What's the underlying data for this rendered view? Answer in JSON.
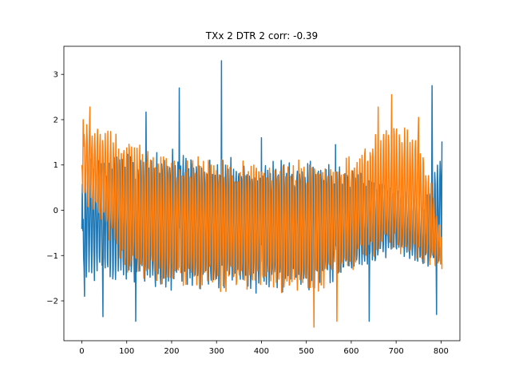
{
  "chart_data": {
    "type": "line",
    "title": "TXx 2 DTR 2 corr: -0.39",
    "xlabel": "",
    "ylabel": "",
    "xlim": [
      -40,
      842
    ],
    "ylim": [
      -2.88,
      3.62
    ],
    "xticks": [
      0,
      100,
      200,
      300,
      400,
      500,
      600,
      700,
      800
    ],
    "yticks": [
      -2,
      -1,
      0,
      1,
      2,
      3
    ],
    "grid": false,
    "legend": "none",
    "n_points": 803,
    "series": [
      {
        "color": "#1f77b4",
        "amplitude_envelope_x": [
          0,
          100,
          200,
          300,
          400,
          500,
          600,
          700,
          760,
          800
        ],
        "amplitude_envelope_upper": [
          1.2,
          1.4,
          1.5,
          1.3,
          1.2,
          1.2,
          1.0,
          0.6,
          0.2,
          1.5
        ],
        "amplitude_envelope_lower": [
          -1.6,
          -1.8,
          -1.9,
          -1.9,
          -1.9,
          -1.9,
          -1.6,
          -1.0,
          -1.3,
          -1.5
        ],
        "peaks": [
          {
            "x": 2,
            "y": -0.45
          },
          {
            "x": 6,
            "y": -1.9
          },
          {
            "x": 47,
            "y": -2.35
          },
          {
            "x": 120,
            "y": -2.45
          },
          {
            "x": 143,
            "y": 2.17
          },
          {
            "x": 217,
            "y": 2.7
          },
          {
            "x": 311,
            "y": 3.3
          },
          {
            "x": 400,
            "y": 1.6
          },
          {
            "x": 565,
            "y": 1.45
          },
          {
            "x": 640,
            "y": -2.45
          },
          {
            "x": 780,
            "y": 2.75
          },
          {
            "x": 790,
            "y": -2.3
          },
          {
            "x": 802,
            "y": 1.52
          }
        ]
      },
      {
        "color": "#ff7f0e",
        "amplitude_envelope_x": [
          0,
          50,
          100,
          200,
          300,
          400,
          500,
          600,
          680,
          750,
          800
        ],
        "amplitude_envelope_upper": [
          2.0,
          1.9,
          1.7,
          1.3,
          1.3,
          1.2,
          1.2,
          1.3,
          2.0,
          2.0,
          -0.4
        ],
        "amplitude_envelope_lower": [
          0.2,
          -0.5,
          -1.6,
          -1.8,
          -1.9,
          -1.9,
          -2.1,
          -1.4,
          -1.0,
          -1.3,
          -1.3
        ],
        "peaks": [
          {
            "x": 0,
            "y": 1.0
          },
          {
            "x": 3,
            "y": 2.0
          },
          {
            "x": 18,
            "y": 2.28
          },
          {
            "x": 517,
            "y": -2.58
          },
          {
            "x": 568,
            "y": -2.45
          },
          {
            "x": 660,
            "y": 2.28
          },
          {
            "x": 690,
            "y": 2.55
          },
          {
            "x": 750,
            "y": 2.05
          },
          {
            "x": 802,
            "y": -1.3
          }
        ]
      }
    ]
  }
}
